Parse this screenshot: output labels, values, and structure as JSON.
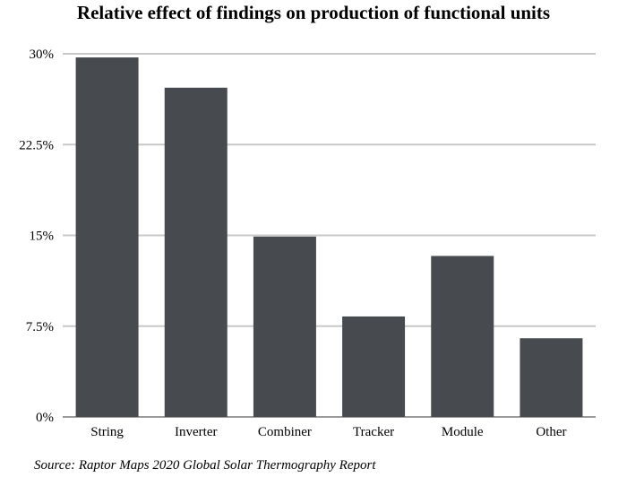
{
  "title": "Relative effect of findings on production of functional units",
  "source": "Source: Raptor Maps 2020 Global Solar Thermography Report",
  "chart_data": {
    "type": "bar",
    "title": "Relative effect of findings on production of functional units",
    "categories": [
      "String",
      "Inverter",
      "Combiner",
      "Tracker",
      "Module",
      "Other"
    ],
    "values": [
      29.7,
      27.2,
      14.9,
      8.3,
      13.3,
      6.5
    ],
    "value_unit": "%",
    "ylim": [
      0,
      30
    ],
    "yticks": [
      0,
      7.5,
      15,
      22.5,
      30
    ],
    "ytick_labels": [
      "0%",
      "7.5%",
      "15%",
      "22.5%",
      "30%"
    ],
    "grid": true,
    "bar_color": "#474b4f",
    "grid_color": "#c8c8c8",
    "xlabel": "",
    "ylabel": ""
  }
}
